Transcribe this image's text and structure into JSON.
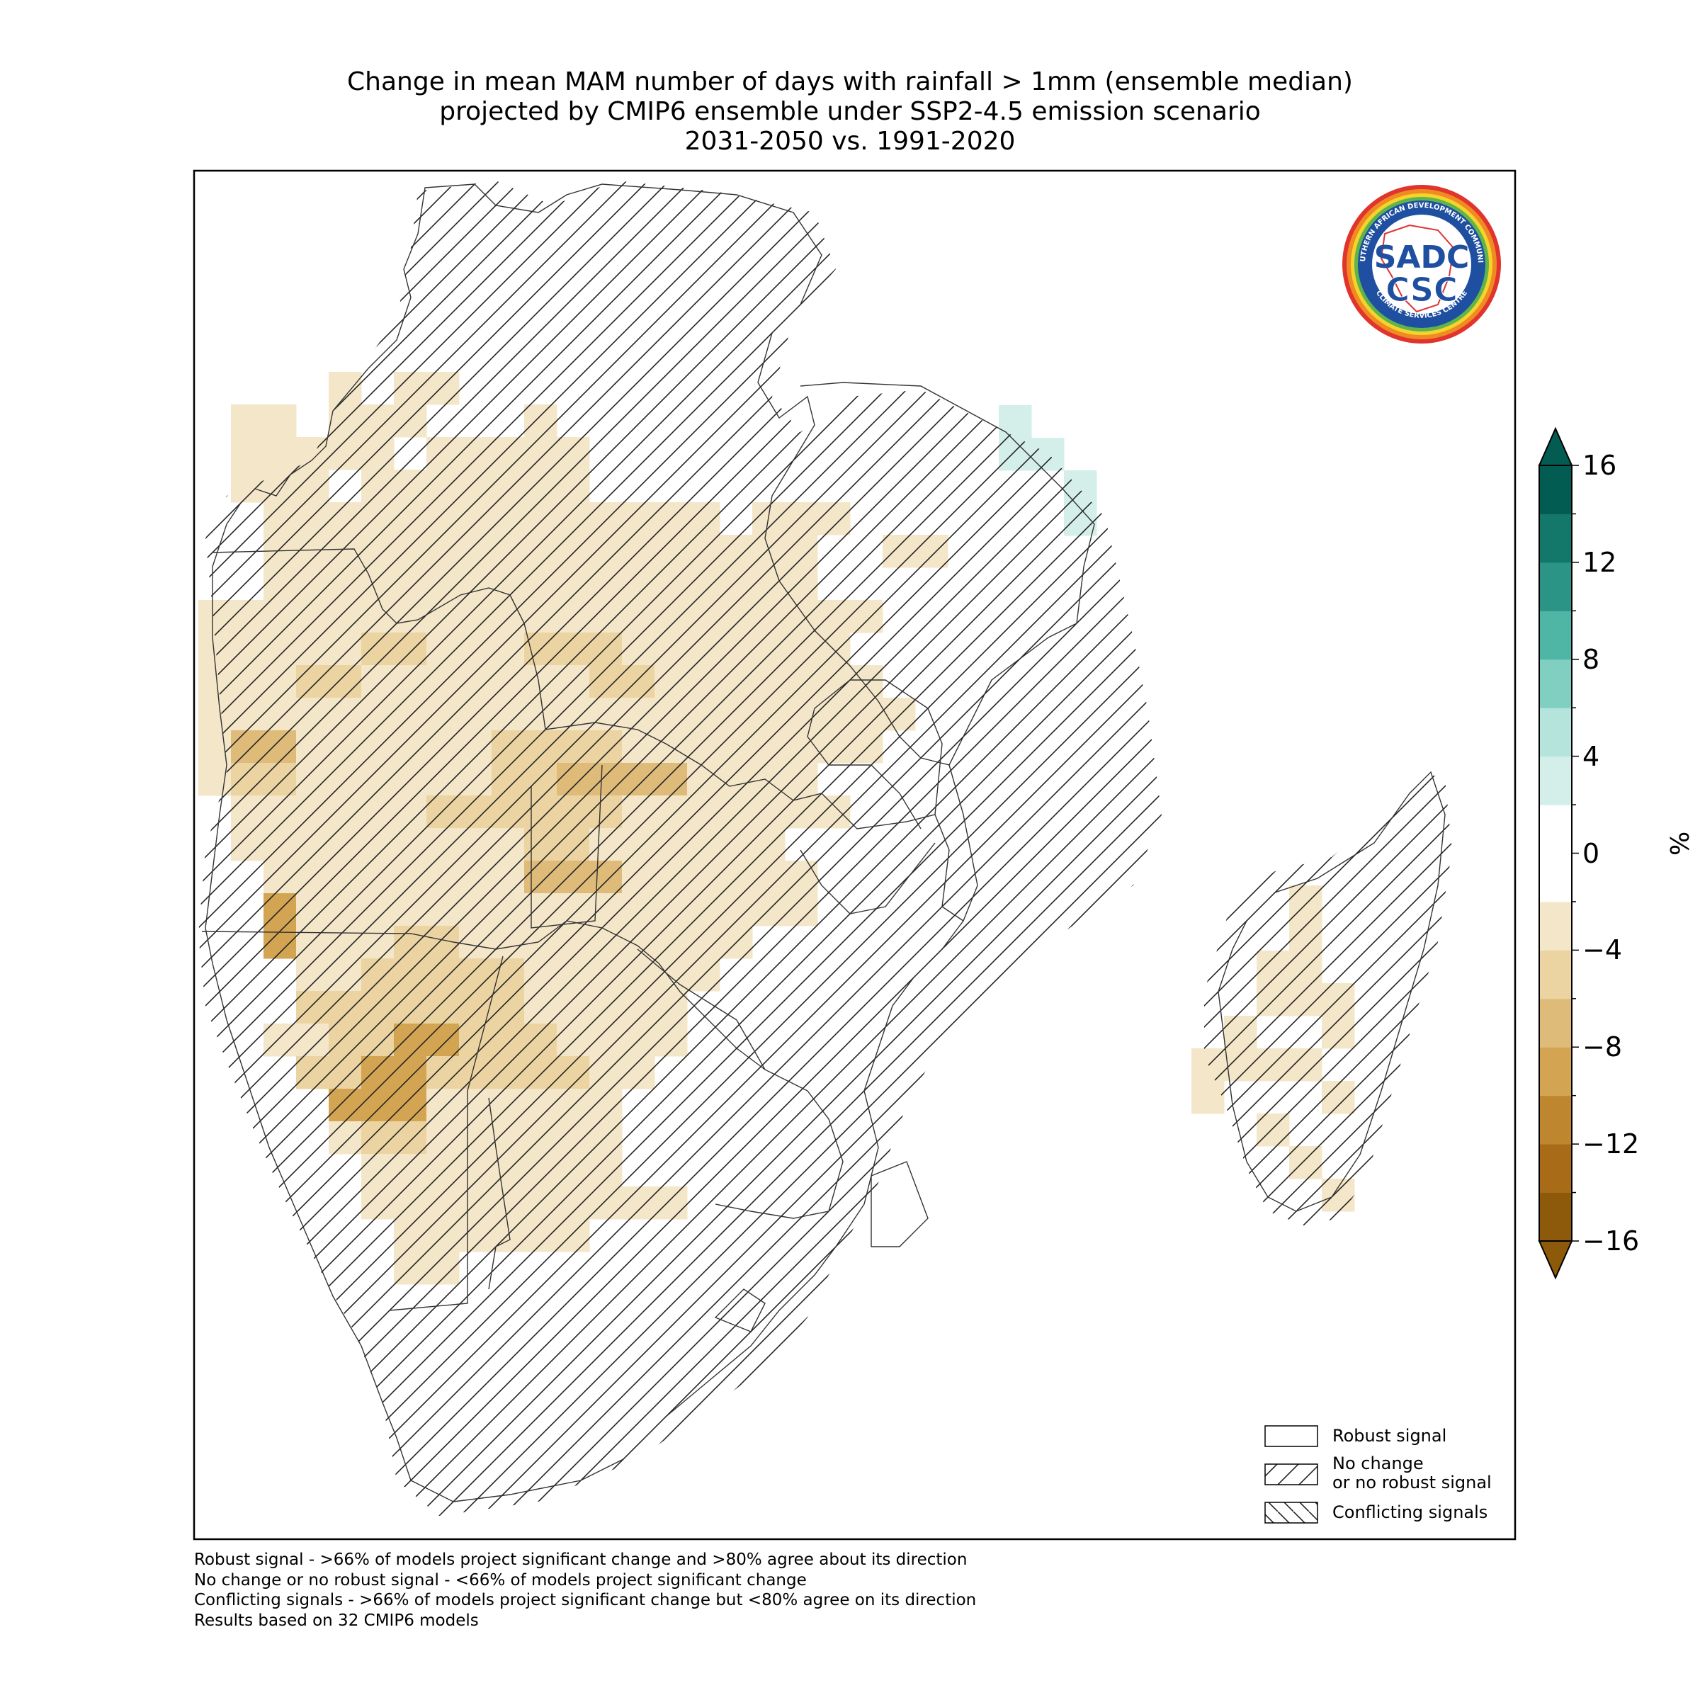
{
  "title": {
    "line1": "Change in mean MAM number of days with rainfall > 1mm (ensemble median)",
    "line2": "projected by CMIP6 ensemble under SSP2-4.5 emission scenario",
    "line3": "2031-2050 vs. 1991-2020"
  },
  "colorbar": {
    "unit": "%",
    "ticks": [
      16,
      12,
      8,
      4,
      0,
      -4,
      -8,
      -12,
      -16
    ],
    "tick_labels": [
      "16",
      "12",
      "8",
      "4",
      "0",
      "−4",
      "−8",
      "−12",
      "−16"
    ],
    "range": [
      -16,
      16
    ],
    "step": 2,
    "extend": "both",
    "colors": [
      "#8c5a0a",
      "#a86b17",
      "#bf8630",
      "#d3a553",
      "#dfbb7a",
      "#ecd4a2",
      "#f4e6c8",
      "#ffffff",
      "#ffffff",
      "#d4efea",
      "#b5e4dc",
      "#80cfc1",
      "#4fb5a5",
      "#2b9486",
      "#13786a",
      "#035c52"
    ]
  },
  "legend": {
    "robust": "Robust signal",
    "no_change_line1": "No change",
    "no_change_line2": "or no robust signal",
    "conflicting": "Conflicting signals"
  },
  "notes": {
    "line1": "Robust signal - >66% of models project significant change and >80% agree about its direction",
    "line2": "No change or no robust signal - <66% of models project significant change",
    "line3": "Conflicting signals - >66% of models project significant change but <80% agree on its direction",
    "line4": "Results based on 32 CMIP6 models"
  },
  "logo": {
    "ring_top": "SOUTHERN AFRICAN DEVELOPMENT COMMUNITY",
    "ring_bottom": "CLIMATE SERVICES CENTRE",
    "upper": "SADC",
    "lower": "CSC"
  }
}
